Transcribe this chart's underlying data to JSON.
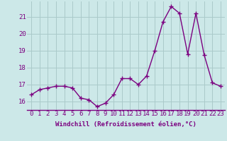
{
  "x": [
    0,
    1,
    2,
    3,
    4,
    5,
    6,
    7,
    8,
    9,
    10,
    11,
    12,
    13,
    14,
    15,
    16,
    17,
    18,
    19,
    20,
    21,
    22,
    23
  ],
  "y": [
    16.4,
    16.7,
    16.8,
    16.9,
    16.9,
    16.8,
    16.2,
    16.1,
    15.7,
    15.9,
    16.4,
    17.35,
    17.35,
    17.0,
    17.5,
    19.0,
    20.7,
    21.6,
    21.2,
    18.8,
    21.2,
    18.75,
    17.1,
    16.9
  ],
  "line_color": "#7b0080",
  "marker": "+",
  "marker_size": 4,
  "marker_linewidth": 1.0,
  "bg_color": "#cce8e8",
  "grid_color": "#aacaca",
  "xlabel": "Windchill (Refroidissement éolien,°C)",
  "xlabel_fontsize": 6.5,
  "tick_fontsize": 6.5,
  "ylim": [
    15.5,
    21.9
  ],
  "yticks": [
    16,
    17,
    18,
    19,
    20,
    21
  ],
  "xticks": [
    0,
    1,
    2,
    3,
    4,
    5,
    6,
    7,
    8,
    9,
    10,
    11,
    12,
    13,
    14,
    15,
    16,
    17,
    18,
    19,
    20,
    21,
    22,
    23
  ],
  "xtick_labels": [
    "0",
    "1",
    "2",
    "3",
    "4",
    "5",
    "6",
    "7",
    "8",
    "9",
    "10",
    "11",
    "12",
    "13",
    "14",
    "15",
    "16",
    "17",
    "18",
    "19",
    "20",
    "21",
    "22",
    "23"
  ],
  "linewidth": 1.0
}
